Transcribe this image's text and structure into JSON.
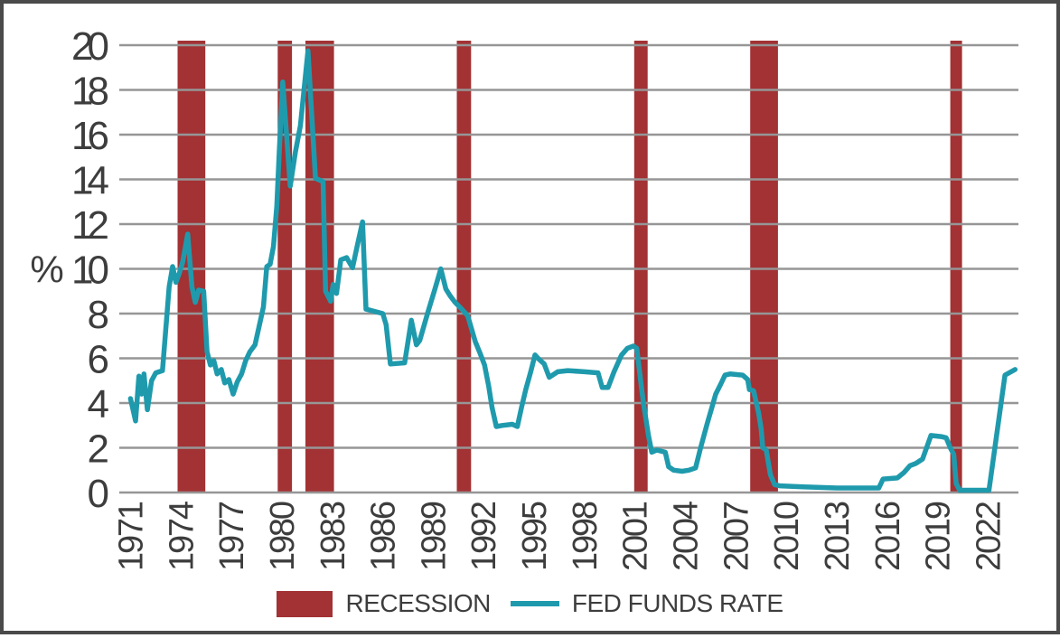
{
  "legend": {
    "recession_label": "RECESSION",
    "fed_funds_label": "FED FUNDS RATE"
  },
  "colors": {
    "recession": "#a23234",
    "line": "#1f9aad",
    "grid": "#969696",
    "text": "#3d3d3d",
    "border": "#4a4a4a",
    "background": "#ffffff"
  },
  "chart_data": {
    "type": "line",
    "title": "",
    "xlabel": "",
    "ylabel": "%",
    "unit_label": "%",
    "ylim": [
      0,
      20
    ],
    "y_ticks": [
      20,
      18,
      16,
      14,
      12,
      10,
      8,
      6,
      4,
      2,
      0
    ],
    "xlim": [
      1970.6,
      2023.8
    ],
    "x_ticks": [
      1971,
      1974,
      1977,
      1980,
      1983,
      1986,
      1989,
      1992,
      1995,
      1998,
      2001,
      2004,
      2007,
      2010,
      2013,
      2016,
      2019,
      2022
    ],
    "grid": "horizontal",
    "legend_position": "bottom",
    "recession_bands": {
      "name": "RECESSION",
      "intervals": [
        [
          1973.8,
          1975.45
        ],
        [
          1979.75,
          1980.6
        ],
        [
          1981.4,
          1983.1
        ],
        [
          1990.4,
          1991.25
        ],
        [
          2000.95,
          2001.75
        ],
        [
          2007.85,
          2009.5
        ],
        [
          2019.75,
          2020.45
        ]
      ]
    },
    "series": [
      {
        "name": "FED FUNDS RATE",
        "points": [
          [
            1971.0,
            4.2
          ],
          [
            1971.15,
            3.7
          ],
          [
            1971.3,
            3.2
          ],
          [
            1971.5,
            5.2
          ],
          [
            1971.65,
            4.4
          ],
          [
            1971.8,
            5.3
          ],
          [
            1972.0,
            3.7
          ],
          [
            1972.25,
            5.0
          ],
          [
            1972.5,
            5.35
          ],
          [
            1972.9,
            5.45
          ],
          [
            1973.3,
            9.2
          ],
          [
            1973.5,
            10.1
          ],
          [
            1973.7,
            9.4
          ],
          [
            1973.9,
            9.8
          ],
          [
            1974.1,
            10.3
          ],
          [
            1974.4,
            11.55
          ],
          [
            1974.65,
            9.2
          ],
          [
            1974.85,
            8.5
          ],
          [
            1975.05,
            9.05
          ],
          [
            1975.35,
            9.0
          ],
          [
            1975.55,
            6.3
          ],
          [
            1975.75,
            5.7
          ],
          [
            1975.95,
            5.9
          ],
          [
            1976.15,
            5.3
          ],
          [
            1976.4,
            5.5
          ],
          [
            1976.6,
            4.9
          ],
          [
            1976.85,
            5.05
          ],
          [
            1977.1,
            4.4
          ],
          [
            1977.35,
            4.95
          ],
          [
            1977.6,
            5.3
          ],
          [
            1977.85,
            5.9
          ],
          [
            1978.1,
            6.3
          ],
          [
            1978.4,
            6.6
          ],
          [
            1978.7,
            7.6
          ],
          [
            1978.9,
            8.3
          ],
          [
            1979.1,
            10.1
          ],
          [
            1979.3,
            10.2
          ],
          [
            1979.5,
            11.0
          ],
          [
            1979.7,
            12.8
          ],
          [
            1979.85,
            15.3
          ],
          [
            1980.05,
            18.35
          ],
          [
            1980.5,
            13.7
          ],
          [
            1980.8,
            15.2
          ],
          [
            1981.1,
            16.4
          ],
          [
            1981.55,
            19.75
          ],
          [
            1982.0,
            14.05
          ],
          [
            1982.45,
            13.9
          ],
          [
            1982.6,
            9.0
          ],
          [
            1982.9,
            8.55
          ],
          [
            1983.05,
            9.3
          ],
          [
            1983.25,
            8.9
          ],
          [
            1983.5,
            10.4
          ],
          [
            1983.85,
            10.5
          ],
          [
            1984.2,
            10.05
          ],
          [
            1984.5,
            11.1
          ],
          [
            1984.8,
            12.1
          ],
          [
            1985.0,
            8.2
          ],
          [
            1985.5,
            8.1
          ],
          [
            1986.0,
            8.0
          ],
          [
            1986.2,
            7.5
          ],
          [
            1986.45,
            5.75
          ],
          [
            1987.3,
            5.8
          ],
          [
            1987.7,
            7.7
          ],
          [
            1988.0,
            6.6
          ],
          [
            1988.2,
            6.8
          ],
          [
            1988.7,
            8.1
          ],
          [
            1989.1,
            9.1
          ],
          [
            1989.45,
            10.0
          ],
          [
            1989.75,
            9.1
          ],
          [
            1990.0,
            8.8
          ],
          [
            1990.3,
            8.5
          ],
          [
            1990.7,
            8.2
          ],
          [
            1991.05,
            7.9
          ],
          [
            1991.5,
            6.75
          ],
          [
            1991.8,
            6.2
          ],
          [
            1992.05,
            5.7
          ],
          [
            1992.3,
            4.75
          ],
          [
            1992.5,
            3.8
          ],
          [
            1992.75,
            2.95
          ],
          [
            1993.1,
            3.0
          ],
          [
            1993.7,
            3.05
          ],
          [
            1994.0,
            2.95
          ],
          [
            1994.25,
            3.8
          ],
          [
            1994.5,
            4.6
          ],
          [
            1994.8,
            5.4
          ],
          [
            1995.05,
            6.15
          ],
          [
            1995.3,
            5.95
          ],
          [
            1995.6,
            5.75
          ],
          [
            1995.9,
            5.15
          ],
          [
            1996.4,
            5.4
          ],
          [
            1997.0,
            5.45
          ],
          [
            1998.0,
            5.4
          ],
          [
            1998.8,
            5.35
          ],
          [
            1999.05,
            4.7
          ],
          [
            1999.4,
            4.7
          ],
          [
            1999.75,
            5.4
          ],
          [
            2000.2,
            6.15
          ],
          [
            2000.55,
            6.45
          ],
          [
            2000.9,
            6.55
          ],
          [
            2001.1,
            6.45
          ],
          [
            2001.5,
            4.0
          ],
          [
            2001.8,
            2.55
          ],
          [
            2002.0,
            1.8
          ],
          [
            2002.3,
            1.9
          ],
          [
            2002.8,
            1.8
          ],
          [
            2003.0,
            1.15
          ],
          [
            2003.3,
            1.0
          ],
          [
            2003.8,
            0.95
          ],
          [
            2004.2,
            1.0
          ],
          [
            2004.6,
            1.1
          ],
          [
            2004.9,
            2.0
          ],
          [
            2005.3,
            3.1
          ],
          [
            2005.55,
            3.75
          ],
          [
            2005.8,
            4.4
          ],
          [
            2006.1,
            4.85
          ],
          [
            2006.35,
            5.25
          ],
          [
            2006.65,
            5.3
          ],
          [
            2007.4,
            5.25
          ],
          [
            2007.7,
            5.05
          ],
          [
            2007.8,
            4.6
          ],
          [
            2008.05,
            4.55
          ],
          [
            2008.35,
            3.55
          ],
          [
            2008.5,
            2.85
          ],
          [
            2008.6,
            2.0
          ],
          [
            2008.8,
            1.9
          ],
          [
            2009.05,
            0.8
          ],
          [
            2009.3,
            0.35
          ],
          [
            2009.6,
            0.3
          ],
          [
            2011.0,
            0.25
          ],
          [
            2013.0,
            0.2
          ],
          [
            2015.5,
            0.2
          ],
          [
            2015.75,
            0.6
          ],
          [
            2016.6,
            0.65
          ],
          [
            2017.0,
            0.9
          ],
          [
            2017.35,
            1.2
          ],
          [
            2017.7,
            1.3
          ],
          [
            2018.1,
            1.5
          ],
          [
            2018.6,
            2.55
          ],
          [
            2019.2,
            2.5
          ],
          [
            2019.5,
            2.45
          ],
          [
            2019.75,
            2.0
          ],
          [
            2019.95,
            1.7
          ],
          [
            2020.1,
            0.4
          ],
          [
            2020.3,
            0.1
          ],
          [
            2021.0,
            0.1
          ],
          [
            2022.05,
            0.1
          ],
          [
            2023.0,
            5.25
          ],
          [
            2023.6,
            5.5
          ]
        ]
      }
    ]
  }
}
